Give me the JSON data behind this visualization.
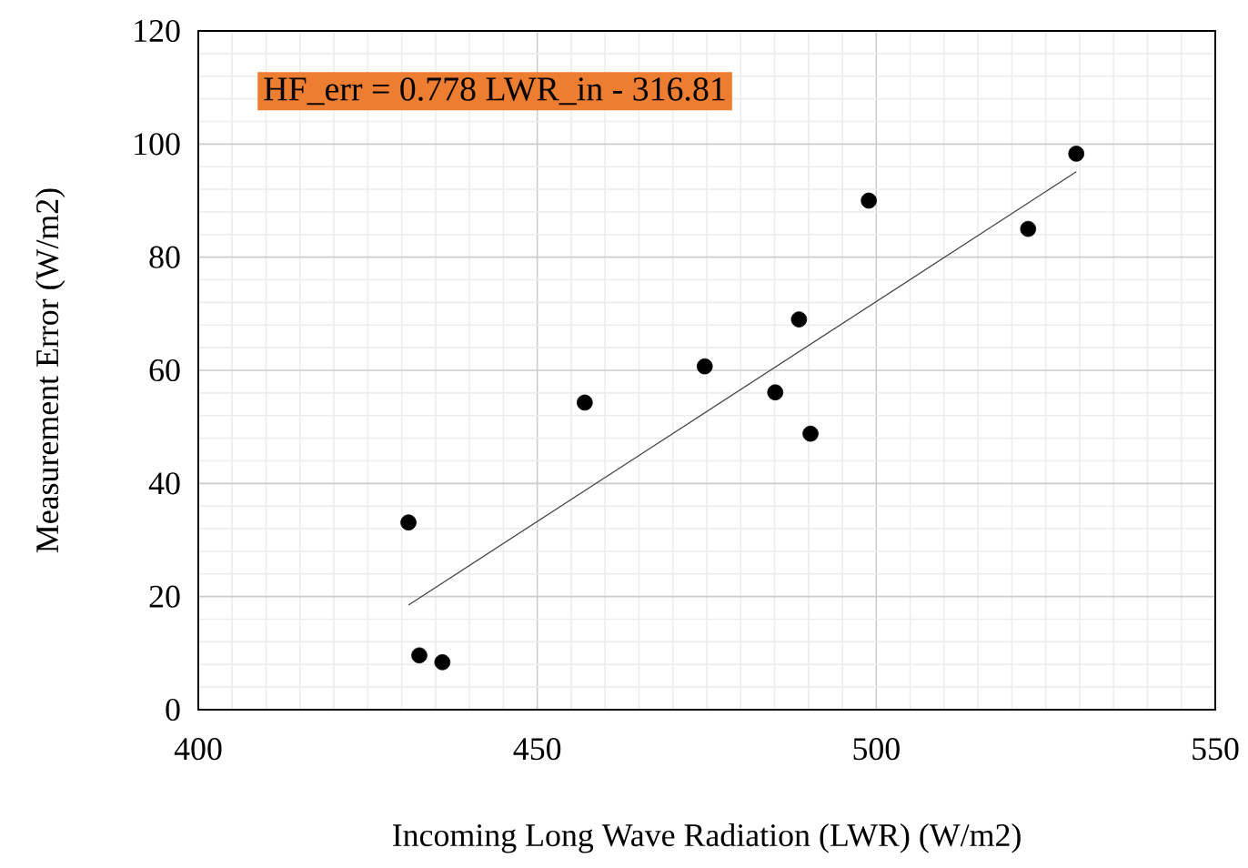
{
  "chart_data": {
    "type": "scatter",
    "xlabel": "Incoming Long Wave Radiation (LWR) (W/m2)",
    "ylabel": "Measurement Error (W/m2)",
    "xlim": [
      400,
      550
    ],
    "xticks": [
      400,
      450,
      500,
      550
    ],
    "ylim": [
      0,
      120
    ],
    "yticks": [
      0,
      20,
      40,
      60,
      80,
      100,
      120
    ],
    "grid": true,
    "annotations": [
      "HF_err = 0.778 LWR_in - 316.81"
    ],
    "series": [
      {
        "marker": "circle",
        "color": "#000000",
        "x": [
          431.0,
          432.6,
          436.0,
          457.0,
          474.7,
          485.1,
          488.6,
          490.3,
          498.9,
          522.4,
          529.5
        ],
        "values": [
          33.1,
          9.6,
          8.4,
          54.3,
          60.7,
          56.1,
          69.0,
          48.8,
          90.0,
          85.0,
          98.3
        ]
      },
      {
        "type": "line",
        "marker": "none",
        "color": "#404040",
        "x": [
          431.0,
          529.5
        ],
        "values": [
          18.5,
          95.1
        ]
      }
    ]
  }
}
